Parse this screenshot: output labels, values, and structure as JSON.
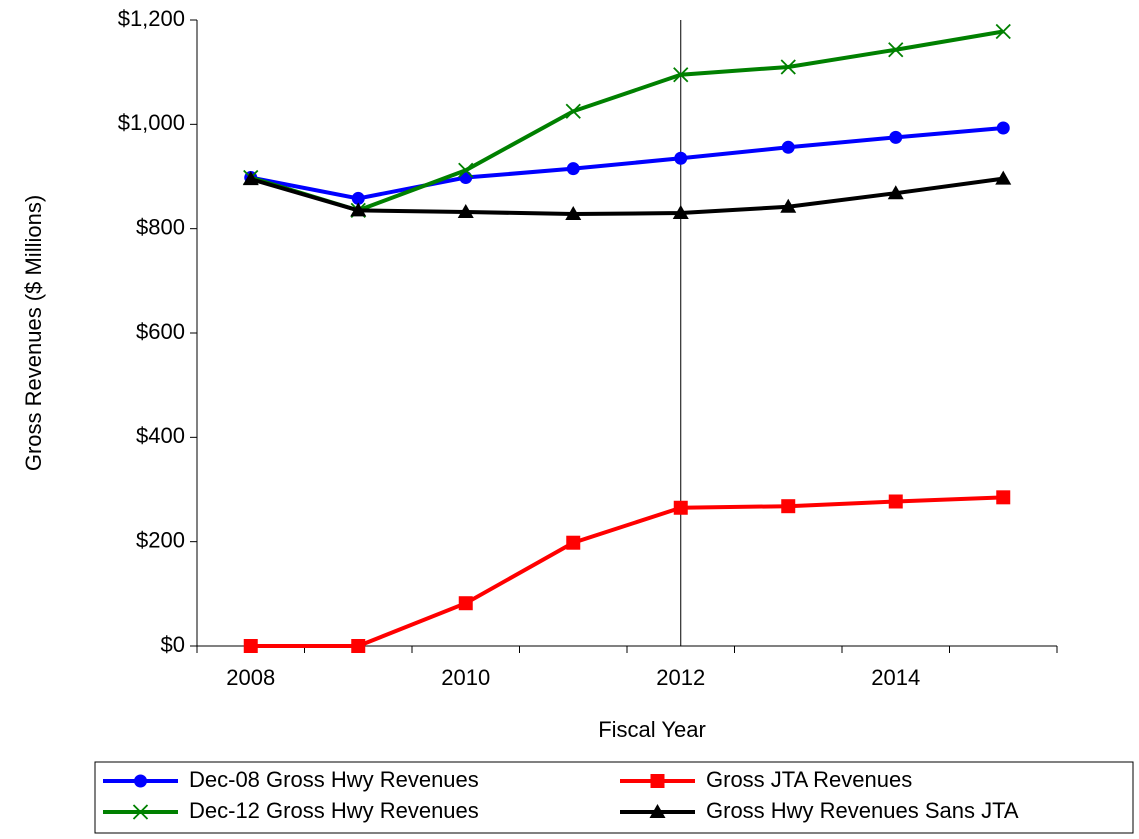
{
  "chart_data": {
    "type": "line",
    "x_label": "Fiscal Year",
    "y_label": "Gross Revenues ($ Millions)",
    "categories": [
      "2008",
      null,
      "2010",
      null,
      "2012",
      null,
      "2014",
      null
    ],
    "ylim": [
      0,
      1200
    ],
    "yticks": [
      {
        "value": 0,
        "label": "$0"
      },
      {
        "value": 200,
        "label": "$200"
      },
      {
        "value": 400,
        "label": "$400"
      },
      {
        "value": 600,
        "label": "$600"
      },
      {
        "value": 800,
        "label": "$800"
      },
      {
        "value": 1000,
        "label": "$1,000"
      },
      {
        "value": 1200,
        "label": "$1,200"
      }
    ],
    "vertical_line_at": "2012",
    "series": [
      {
        "name": "Dec-08 Gross Hwy Revenues",
        "color": "#0000ff",
        "marker": "circle",
        "values": [
          898,
          858,
          898,
          915,
          935,
          956,
          975,
          993
        ]
      },
      {
        "name": "Gross JTA Revenues",
        "color": "#ff0000",
        "marker": "square",
        "values": [
          0,
          0,
          82,
          198,
          265,
          268,
          277,
          285
        ]
      },
      {
        "name": "Dec-12 Gross Hwy Revenues",
        "color": "#008000",
        "marker": "x",
        "values": [
          898,
          835,
          912,
          1025,
          1095,
          1110,
          1143,
          1178
        ]
      },
      {
        "name": "Gross Hwy Revenues Sans JTA",
        "color": "#000000",
        "marker": "triangle",
        "values": [
          895,
          835,
          832,
          828,
          830,
          842,
          868,
          896
        ]
      }
    ]
  }
}
